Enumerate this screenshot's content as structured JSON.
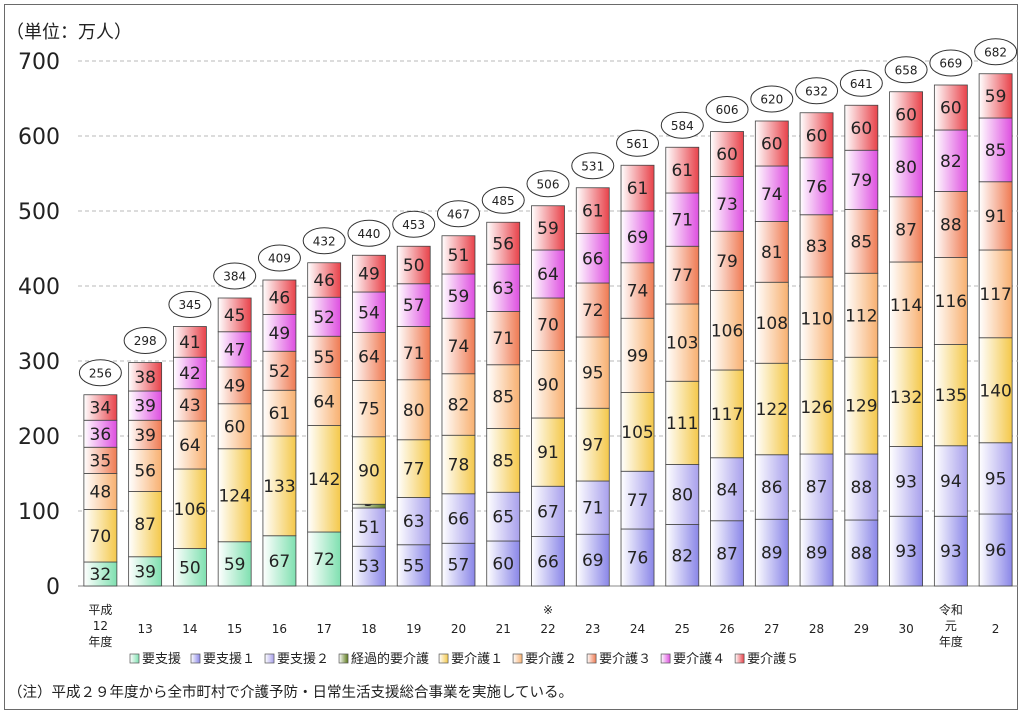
{
  "unit_label": "（単位：万人）",
  "note": "（注）平成２９年度から全市町村で介護予防・日常生活支援総合事業を実施している。",
  "chart_data": {
    "type": "bar",
    "stacked": true,
    "ylim": [
      0,
      700
    ],
    "yticks": [
      0,
      100,
      200,
      300,
      400,
      500,
      600,
      700
    ],
    "grid": true,
    "legend_position": "bottom",
    "categories": [
      [
        "平成",
        "12",
        "年度"
      ],
      [
        "13"
      ],
      [
        "14"
      ],
      [
        "15"
      ],
      [
        "16"
      ],
      [
        "17"
      ],
      [
        "18"
      ],
      [
        "19"
      ],
      [
        "20"
      ],
      [
        "21"
      ],
      [
        "※",
        "22"
      ],
      [
        "23"
      ],
      [
        "24"
      ],
      [
        "25"
      ],
      [
        "26"
      ],
      [
        "27"
      ],
      [
        "28"
      ],
      [
        "29"
      ],
      [
        "30"
      ],
      [
        "令和",
        "元",
        "年度"
      ],
      [
        "2"
      ]
    ],
    "totals": [
      256,
      298,
      345,
      384,
      409,
      432,
      440,
      453,
      467,
      485,
      506,
      531,
      561,
      584,
      606,
      620,
      632,
      641,
      658,
      669,
      682
    ],
    "series": [
      {
        "name": "要支援",
        "color": "#7fe0b0",
        "values": [
          32,
          39,
          50,
          59,
          67,
          72,
          null,
          null,
          null,
          null,
          null,
          null,
          null,
          null,
          null,
          null,
          null,
          null,
          null,
          null,
          null
        ]
      },
      {
        "name": "要支援１",
        "color": "#8a86e8",
        "values": [
          null,
          null,
          null,
          null,
          null,
          null,
          53,
          55,
          57,
          60,
          66,
          69,
          76,
          82,
          87,
          89,
          89,
          88,
          93,
          93,
          96
        ]
      },
      {
        "name": "要支援２",
        "color": "#a8a0ec",
        "values": [
          null,
          null,
          null,
          null,
          null,
          null,
          51,
          63,
          66,
          65,
          67,
          71,
          77,
          80,
          84,
          86,
          87,
          88,
          93,
          94,
          95
        ]
      },
      {
        "name": "経過的要介護",
        "color": "#5c7a1a",
        "values": [
          null,
          null,
          null,
          null,
          null,
          null,
          5,
          0,
          0,
          null,
          null,
          null,
          null,
          null,
          null,
          null,
          null,
          null,
          null,
          null,
          null
        ]
      },
      {
        "name": "要介護１",
        "color": "#f4c84a",
        "values": [
          70,
          87,
          106,
          124,
          133,
          142,
          90,
          77,
          78,
          85,
          91,
          97,
          105,
          111,
          117,
          122,
          126,
          129,
          132,
          135,
          140
        ]
      },
      {
        "name": "要介護２",
        "color": "#f8b070",
        "values": [
          48,
          56,
          64,
          60,
          61,
          64,
          75,
          80,
          82,
          85,
          90,
          95,
          99,
          103,
          106,
          108,
          110,
          112,
          114,
          116,
          117
        ]
      },
      {
        "name": "要介護３",
        "color": "#ef7a52",
        "values": [
          35,
          39,
          43,
          49,
          52,
          55,
          64,
          71,
          74,
          71,
          70,
          72,
          74,
          77,
          79,
          81,
          83,
          85,
          87,
          88,
          91
        ]
      },
      {
        "name": "要介護４",
        "color": "#de4fe0",
        "values": [
          36,
          39,
          42,
          47,
          49,
          52,
          54,
          57,
          59,
          63,
          64,
          66,
          69,
          71,
          73,
          74,
          76,
          79,
          80,
          82,
          85
        ]
      },
      {
        "name": "要介護５",
        "color": "#e8424a",
        "values": [
          34,
          38,
          41,
          45,
          46,
          46,
          49,
          50,
          51,
          56,
          59,
          61,
          61,
          61,
          60,
          60,
          60,
          60,
          60,
          60,
          59
        ]
      }
    ]
  }
}
